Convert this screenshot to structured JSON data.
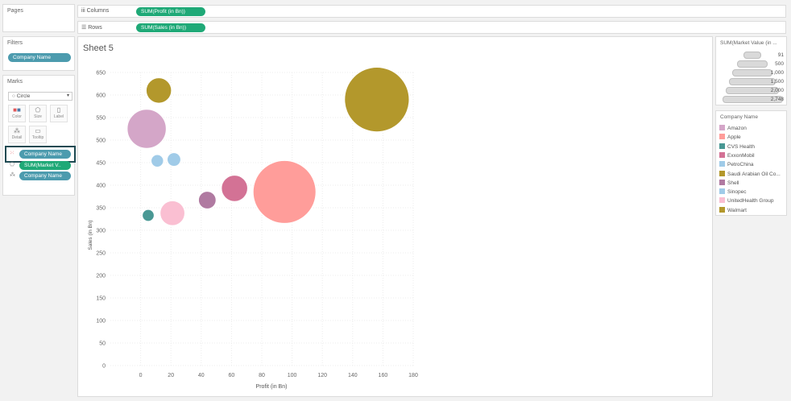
{
  "pages": {
    "title": "Pages"
  },
  "filters": {
    "title": "Filters",
    "pill": "Company Name"
  },
  "marks": {
    "title": "Marks",
    "type": "Circle",
    "buttons": [
      {
        "label": "Color",
        "icon": "color-icon"
      },
      {
        "label": "Size",
        "icon": "size-icon"
      },
      {
        "label": "Label",
        "icon": "label-icon"
      },
      {
        "label": "Detail",
        "icon": "detail-icon"
      },
      {
        "label": "Tooltip",
        "icon": "tooltip-icon"
      }
    ],
    "fields": [
      "Company Name",
      "SUM(Market V..",
      "Company Name"
    ]
  },
  "shelves": {
    "columns": {
      "label": "Columns",
      "pill": "SUM(Profit (in Bn))"
    },
    "rows": {
      "label": "Rows",
      "pill": "SUM(Sales (in Bn))"
    }
  },
  "sheet": {
    "title": "Sheet 5"
  },
  "colors": {
    "dimension_pill": "#4c9bae",
    "measure_pill": "#1fa977",
    "highlight_border": "#1e4a52"
  },
  "chart_data": {
    "type": "scatter",
    "xlabel": "Profit (in Bn)",
    "ylabel": "Sales (in Bn)",
    "xlim": [
      -20,
      180
    ],
    "ylim": [
      0,
      650
    ],
    "xticks": [
      0,
      20,
      40,
      60,
      80,
      100,
      120,
      140,
      160,
      180
    ],
    "yticks": [
      0,
      50,
      100,
      150,
      200,
      250,
      300,
      350,
      400,
      450,
      500,
      550,
      600,
      650
    ],
    "grid": true,
    "points": [
      {
        "company": "Saudi Arabian Oil Co.",
        "x": 156,
        "y": 590,
        "size": 2748,
        "color": "#b3982c"
      },
      {
        "company": "Apple",
        "x": 95,
        "y": 385,
        "size": 2600,
        "color": "#ff9d9a"
      },
      {
        "company": "Amazon",
        "x": 4,
        "y": 525,
        "size": 1000,
        "color": "#d4a6c8"
      },
      {
        "company": "Walmart",
        "x": 12,
        "y": 610,
        "size": 420,
        "color": "#b3982c"
      },
      {
        "company": "ExxonMobil",
        "x": 62,
        "y": 393,
        "size": 450,
        "color": "#d37295"
      },
      {
        "company": "UnitedHealth Group",
        "x": 21,
        "y": 338,
        "size": 400,
        "color": "#fabfd2"
      },
      {
        "company": "Shell",
        "x": 44,
        "y": 367,
        "size": 200,
        "color": "#b07aa1"
      },
      {
        "company": "PetroChina",
        "x": 22,
        "y": 457,
        "size": 120,
        "color": "#a0cbe8"
      },
      {
        "company": "Sinopec",
        "x": 11,
        "y": 454,
        "size": 100,
        "color": "#a0cbe8"
      },
      {
        "company": "CVS Health",
        "x": 5,
        "y": 333,
        "size": 91,
        "color": "#499894"
      }
    ]
  },
  "size_legend": {
    "title": "SUM(Market Value (in ...",
    "items": [
      {
        "label": "91",
        "value": 91
      },
      {
        "label": "500",
        "value": 500
      },
      {
        "label": "1,000",
        "value": 1000
      },
      {
        "label": "1,500",
        "value": 1500
      },
      {
        "label": "2,000",
        "value": 2000
      },
      {
        "label": "2,748",
        "value": 2748
      }
    ]
  },
  "color_legend": {
    "title": "Company Name",
    "items": [
      {
        "label": "Amazon",
        "color": "#d4a6c8"
      },
      {
        "label": "Apple",
        "color": "#ff9d9a"
      },
      {
        "label": "CVS Health",
        "color": "#499894"
      },
      {
        "label": "ExxonMobil",
        "color": "#d37295"
      },
      {
        "label": "PetroChina",
        "color": "#a0cbe8"
      },
      {
        "label": "Saudi Arabian Oil Co...",
        "color": "#b3982c"
      },
      {
        "label": "Shell",
        "color": "#b07aa1"
      },
      {
        "label": "Sinopec",
        "color": "#a0cbe8"
      },
      {
        "label": "UnitedHealth Group",
        "color": "#fabfd2"
      },
      {
        "label": "Walmart",
        "color": "#b3982c"
      }
    ]
  }
}
